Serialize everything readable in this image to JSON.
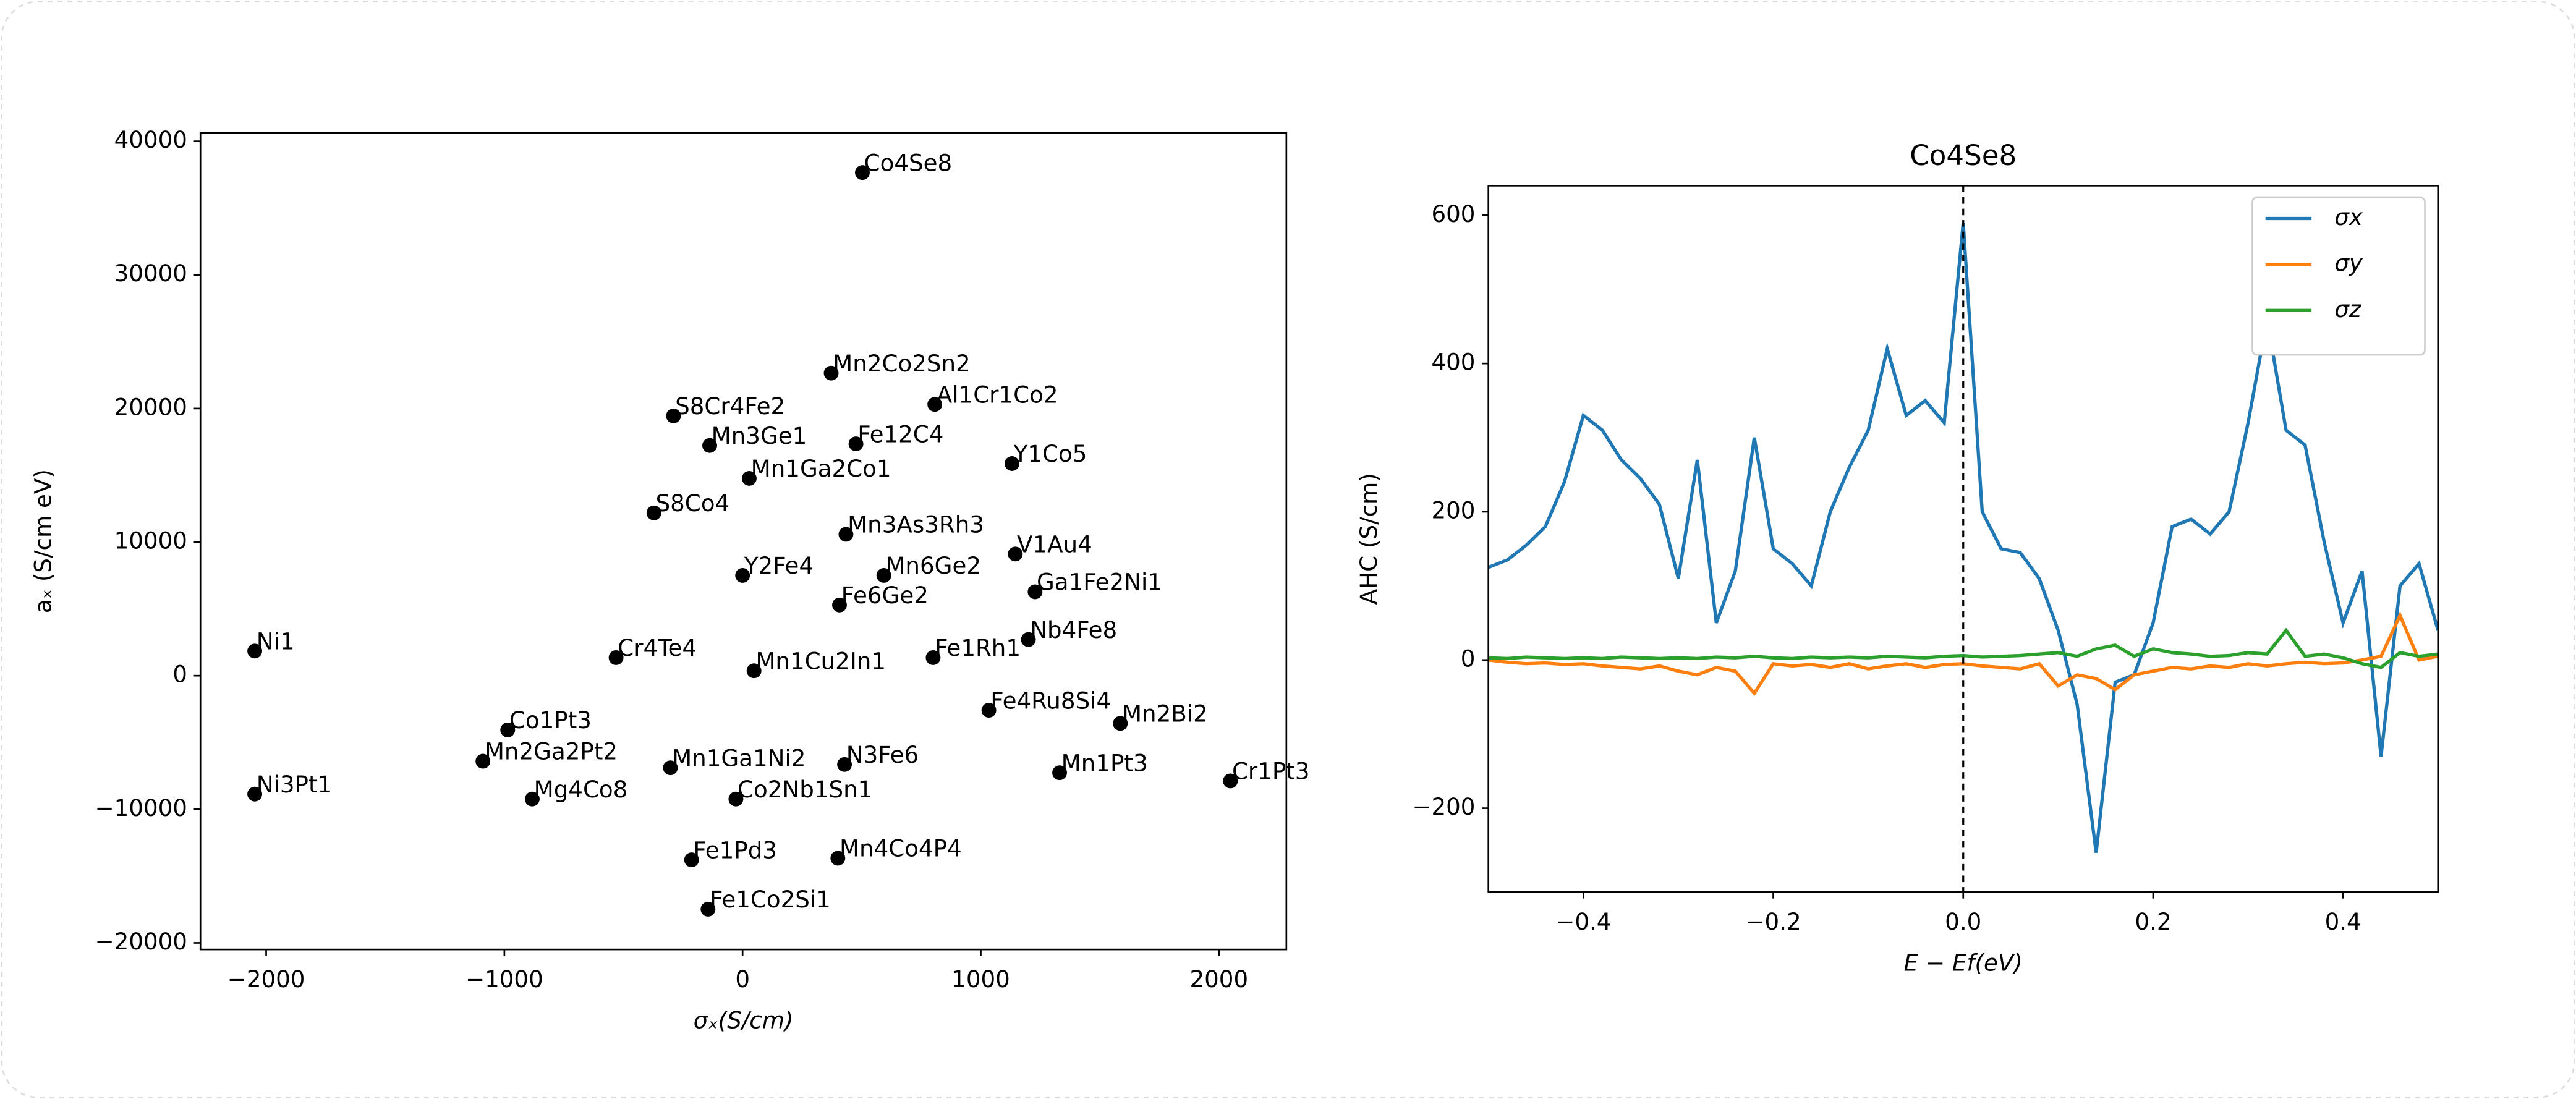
{
  "chart_data": [
    {
      "type": "scatter",
      "xlabel": "σₓ(S/cm)",
      "ylabel": "aₓ (S/cm eV)",
      "color": "#000000",
      "labels": [
        "Co4Se8",
        "Mn2Co2Sn2",
        "S8Cr4Fe2",
        "Al1Cr1Co2",
        "Mn3Ge1",
        "Fe12C4",
        "Y1Co5",
        "Mn1Ga2Co1",
        "S8Co4",
        "Mn3As3Rh3",
        "V1Au4",
        "Y2Fe4",
        "Mn6Ge2",
        "Ga1Fe2Ni1",
        "Fe6Ge2",
        "Ni1",
        "Nb4Fe8",
        "Cr4Te4",
        "Fe1Rh1",
        "Mn1Cu2In1",
        "Fe4Ru8Si4",
        "Co1Pt3",
        "Mn2Bi2",
        "Mn2Ga2Pt2",
        "Mn1Ga1Ni2",
        "N3Fe6",
        "Mn1Pt3",
        "Cr1Pt3",
        "Ni3Pt1",
        "Mg4Co8",
        "Co2Nb1Sn1",
        "Fe1Pd3",
        "Mn4Co4P4",
        "Fe1Co2Si1"
      ],
      "x": [
        503,
        372,
        -290,
        807,
        -138,
        476,
        1131,
        28,
        -372,
        434,
        1145,
        0,
        593,
        1228,
        407,
        -2048,
        1200,
        -531,
        800,
        48,
        1034,
        -986,
        1586,
        -1090,
        -303,
        428,
        1331,
        2048,
        -2048,
        -883,
        -28,
        -214,
        400,
        -145
      ],
      "values": [
        37662,
        22646,
        19446,
        20308,
        17231,
        17354,
        15877,
        14769,
        12185,
        10585,
        9108,
        7508,
        7508,
        6277,
        5292,
        1846,
        2708,
        1354,
        1354,
        369,
        -2585,
        -4062,
        -3569,
        -6400,
        -6892,
        -6646,
        -7262,
        -7877,
        -8862,
        -9231,
        -9231,
        -13785,
        -13662,
        -17477
      ],
      "xlim": [
        -2276,
        2283
      ],
      "ylim": [
        -20492,
        40615
      ],
      "xticks": [
        {
          "value": -2000,
          "label": "−2000"
        },
        {
          "value": -1000,
          "label": "−1000"
        },
        0,
        1000,
        2000
      ],
      "yticks": [
        {
          "value": -20000,
          "label": "−20000"
        },
        {
          "value": -10000,
          "label": "−10000"
        },
        0,
        10000,
        20000,
        30000,
        40000
      ]
    },
    {
      "type": "line",
      "title": "Co4Se8",
      "xlabel": "E − Ef(eV)",
      "ylabel": "AHC (S/cm)",
      "vline": 0,
      "legend": "upper right",
      "x": [
        -0.5,
        -0.48,
        -0.46,
        -0.44,
        -0.42,
        -0.4,
        -0.38,
        -0.36,
        -0.34,
        -0.32,
        -0.3,
        -0.28,
        -0.26,
        -0.24,
        -0.22,
        -0.2,
        -0.18,
        -0.16,
        -0.14,
        -0.12,
        -0.1,
        -0.08,
        -0.06,
        -0.04,
        -0.02,
        0,
        0.02,
        0.04,
        0.06,
        0.08,
        0.1,
        0.12,
        0.14,
        0.16,
        0.18,
        0.2,
        0.22,
        0.24,
        0.26,
        0.28,
        0.3,
        0.32,
        0.34,
        0.36,
        0.38,
        0.4,
        0.42,
        0.44,
        0.46,
        0.48,
        0.5
      ],
      "series": [
        {
          "name": "σx",
          "color": "#1f77b4",
          "values": [
            125,
            135,
            155,
            180,
            240,
            330,
            310,
            270,
            245,
            210,
            110,
            270,
            50,
            120,
            300,
            150,
            130,
            100,
            200,
            260,
            310,
            420,
            330,
            350,
            320,
            590,
            200,
            150,
            145,
            110,
            40,
            -60,
            -260,
            -30,
            -20,
            50,
            180,
            190,
            170,
            200,
            320,
            460,
            310,
            290,
            160,
            50,
            120,
            -130,
            100,
            130,
            40
          ]
        },
        {
          "name": "σy",
          "color": "#ff7f0e",
          "values": [
            0,
            -3,
            -5,
            -4,
            -6,
            -5,
            -8,
            -10,
            -12,
            -8,
            -15,
            -20,
            -10,
            -15,
            -45,
            -5,
            -8,
            -6,
            -10,
            -5,
            -12,
            -8,
            -5,
            -10,
            -6,
            -5,
            -8,
            -10,
            -12,
            -5,
            -35,
            -20,
            -25,
            -40,
            -20,
            -15,
            -10,
            -12,
            -8,
            -10,
            -5,
            -8,
            -5,
            -3,
            -5,
            -4,
            0,
            5,
            60,
            0,
            5
          ]
        },
        {
          "name": "σz",
          "color": "#2ca02c",
          "values": [
            3,
            2,
            4,
            3,
            2,
            3,
            2,
            4,
            3,
            2,
            3,
            2,
            4,
            3,
            5,
            3,
            2,
            4,
            3,
            4,
            3,
            5,
            4,
            3,
            5,
            6,
            4,
            5,
            6,
            8,
            10,
            5,
            15,
            20,
            5,
            15,
            10,
            8,
            5,
            6,
            10,
            8,
            40,
            5,
            8,
            3,
            -5,
            -10,
            10,
            5,
            8
          ]
        }
      ],
      "xlim": [
        -0.5,
        0.5
      ],
      "ylim": [
        -313,
        640
      ],
      "xticks": [
        {
          "value": -0.4,
          "label": "−0.4"
        },
        {
          "value": -0.2,
          "label": "−0.2"
        },
        {
          "value": 0,
          "label": "0.0"
        },
        0.2,
        0.4
      ],
      "yticks": [
        {
          "value": -200,
          "label": "−200"
        },
        0,
        200,
        400,
        600
      ]
    }
  ]
}
